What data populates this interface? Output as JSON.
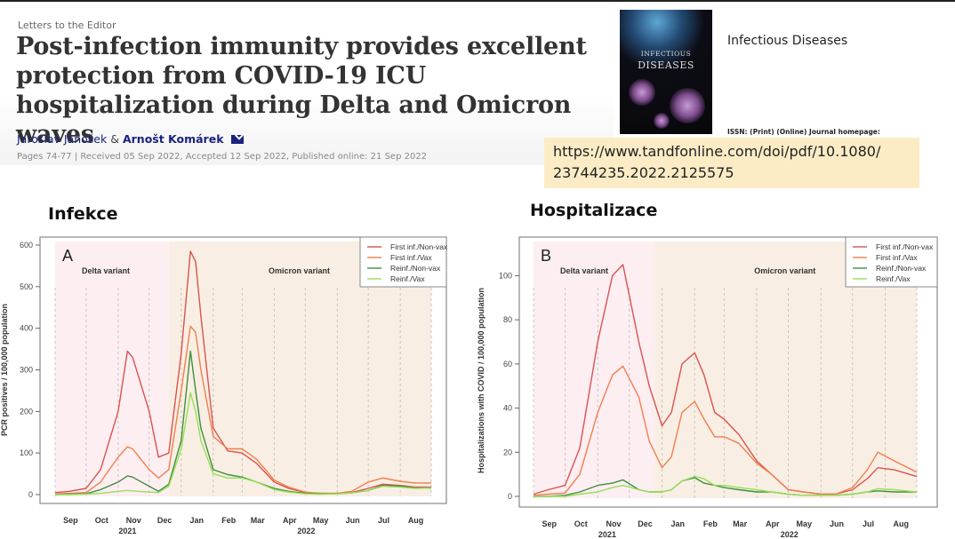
{
  "header": {
    "section": "Letters to the Editor",
    "title": "Post-infection immunity provides excellent protection from COVID-19 ICU hospitalization during Delta and Omicron waves",
    "author1": "Jaroslav Janošek",
    "amp": "&",
    "author2": "Arnošt Komárek",
    "contact_icon": "envelope-icon",
    "meta": "Pages 74-77 | Received 05 Sep 2022, Accepted 12 Sep 2022, Published online: 21 Sep 2022"
  },
  "journal": {
    "cover_line1": "INFECTIOUS",
    "cover_line2": "DISEASES",
    "name": "Infectious Diseases",
    "issn": "ISSN: (Print) (Online) Journal homepage:",
    "doi_url": "https://www.tandfonline.com/doi/pdf/10.1080/23744235.2022.2125575",
    "doi_line1": "https://www.tandfonline.com/doi/pdf/10.1080/",
    "doi_line2": "23744235.2022.2125575"
  },
  "headings": {
    "left": "Infekce",
    "right": "Hospitalizace"
  },
  "colors": {
    "first_nonvax": "#d9534f",
    "first_vax": "#f07f4f",
    "reinf_nonvax": "#3f8f3f",
    "reinf_vax": "#96e05a",
    "delta_bg": "#fdeef2",
    "omicron_bg": "#f9eee3"
  },
  "chart_data": [
    {
      "type": "line",
      "panel_label": "A",
      "title": "",
      "ylabel": "PCR positives / 100,000 population",
      "xlabel": "",
      "ylim": [
        0,
        600
      ],
      "yticks": [
        0,
        100,
        200,
        300,
        400,
        500,
        600
      ],
      "month_ticks": [
        "Sep",
        "Oct",
        "Nov",
        "Dec",
        "Jan",
        "Feb",
        "Mar",
        "Apr",
        "May",
        "Jun",
        "Jul",
        "Aug"
      ],
      "year_labels": [
        "2021",
        "2022"
      ],
      "regions": [
        {
          "label": "Delta variant",
          "from": "2021-09-01",
          "to": "2021-12-20"
        },
        {
          "label": "Omicron variant",
          "from": "2021-12-20",
          "to": "2022-08-31"
        }
      ],
      "legend": [
        "First inf./Non-vax",
        "First inf./Vax",
        "Reinf./Non-vax",
        "Reinf./Vax"
      ],
      "legend_position": "top-right",
      "x": [
        "2021-09-01",
        "2021-09-15",
        "2021-10-01",
        "2021-10-15",
        "2021-11-01",
        "2021-11-10",
        "2021-11-15",
        "2021-12-01",
        "2021-12-10",
        "2021-12-20",
        "2022-01-01",
        "2022-01-10",
        "2022-01-15",
        "2022-01-20",
        "2022-02-01",
        "2022-02-15",
        "2022-03-01",
        "2022-03-15",
        "2022-04-01",
        "2022-04-15",
        "2022-05-01",
        "2022-05-15",
        "2022-06-01",
        "2022-06-15",
        "2022-07-01",
        "2022-07-15",
        "2022-08-01",
        "2022-08-15",
        "2022-08-31"
      ],
      "series": [
        {
          "name": "First inf./Non-vax",
          "values": [
            5,
            8,
            15,
            60,
            200,
            345,
            330,
            200,
            90,
            100,
            340,
            585,
            560,
            430,
            160,
            105,
            100,
            75,
            30,
            15,
            5,
            3,
            3,
            5,
            15,
            25,
            22,
            18,
            18
          ]
        },
        {
          "name": "First inf./Vax",
          "values": [
            2,
            3,
            5,
            30,
            90,
            115,
            110,
            60,
            40,
            60,
            250,
            405,
            390,
            300,
            140,
            110,
            110,
            85,
            35,
            18,
            6,
            3,
            3,
            8,
            30,
            40,
            32,
            28,
            28
          ]
        },
        {
          "name": "Reinf./Non-vax",
          "values": [
            0,
            1,
            2,
            12,
            30,
            45,
            42,
            20,
            8,
            25,
            130,
            345,
            250,
            160,
            60,
            48,
            42,
            30,
            15,
            8,
            3,
            2,
            2,
            4,
            10,
            22,
            20,
            16,
            16
          ]
        },
        {
          "name": "Reinf./Vax",
          "values": [
            0,
            0,
            1,
            3,
            8,
            10,
            9,
            6,
            5,
            20,
            110,
            245,
            200,
            130,
            50,
            40,
            40,
            30,
            12,
            6,
            2,
            1,
            2,
            4,
            10,
            20,
            18,
            15,
            16
          ]
        }
      ]
    },
    {
      "type": "line",
      "panel_label": "B",
      "title": "",
      "ylabel": "Hospitalizations with COVID / 100,000 population",
      "xlabel": "",
      "ylim": [
        0,
        105
      ],
      "yticks": [
        0,
        20,
        40,
        60,
        80,
        100
      ],
      "month_ticks": [
        "Sep",
        "Oct",
        "Nov",
        "Dec",
        "Jan",
        "Feb",
        "Mar",
        "Apr",
        "May",
        "Jun",
        "Jul",
        "Aug"
      ],
      "year_labels": [
        "2021",
        "2022"
      ],
      "regions": [
        {
          "label": "Delta variant",
          "from": "2021-09-01",
          "to": "2021-12-25"
        },
        {
          "label": "Omicron variant",
          "from": "2021-12-25",
          "to": "2022-08-31"
        }
      ],
      "legend": [
        "First inf./Non-vax",
        "First inf./Vax",
        "Reinf./Non-vax",
        "Reinf./Vax"
      ],
      "legend_position": "top-right",
      "x": [
        "2021-09-01",
        "2021-09-15",
        "2021-10-01",
        "2021-10-15",
        "2021-11-01",
        "2021-11-15",
        "2021-11-25",
        "2021-12-10",
        "2021-12-20",
        "2022-01-01",
        "2022-01-10",
        "2022-01-20",
        "2022-02-01",
        "2022-02-10",
        "2022-02-20",
        "2022-03-01",
        "2022-03-15",
        "2022-04-01",
        "2022-04-15",
        "2022-05-01",
        "2022-05-15",
        "2022-06-01",
        "2022-06-15",
        "2022-07-01",
        "2022-07-15",
        "2022-07-25",
        "2022-08-10",
        "2022-08-31"
      ],
      "series": [
        {
          "name": "First inf./Non-vax",
          "values": [
            1,
            3,
            5,
            22,
            70,
            100,
            105,
            70,
            50,
            32,
            38,
            60,
            65,
            55,
            38,
            35,
            28,
            16,
            10,
            3,
            2,
            1,
            1,
            3,
            8,
            13,
            12,
            9
          ]
        },
        {
          "name": "First inf./Vax",
          "values": [
            0.5,
            1,
            1.5,
            10,
            38,
            55,
            59,
            45,
            25,
            13,
            18,
            38,
            43,
            35,
            27,
            27,
            24,
            15,
            10,
            3,
            2,
            1,
            1,
            4,
            12,
            20,
            16,
            11
          ]
        },
        {
          "name": "Reinf./Non-vax",
          "values": [
            0,
            0,
            0.5,
            2,
            5,
            6,
            7.5,
            3,
            2,
            2,
            3,
            7,
            8.5,
            6,
            5,
            4,
            3,
            2,
            2,
            1,
            0.5,
            0.5,
            0.5,
            1,
            2,
            2.5,
            2,
            2
          ]
        },
        {
          "name": "Reinf./Vax",
          "values": [
            0,
            0,
            0,
            1,
            2,
            4,
            5,
            3,
            2,
            2,
            3,
            7,
            9,
            8,
            5,
            5,
            4,
            3,
            2,
            1,
            0.5,
            0.5,
            0.5,
            1,
            2,
            3.5,
            3,
            2
          ]
        }
      ]
    }
  ]
}
